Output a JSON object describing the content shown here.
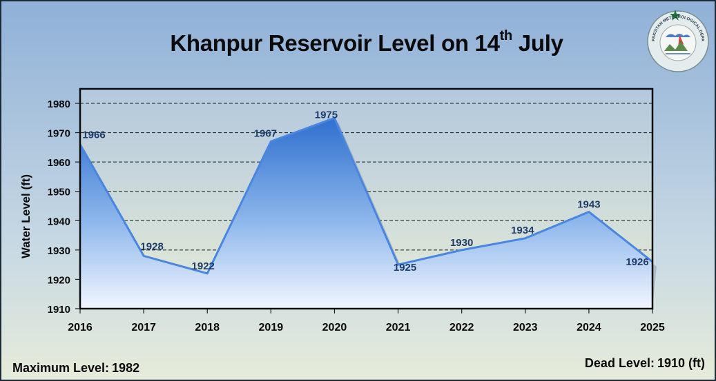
{
  "title": {
    "main": "Khanpur Reservoir Level on 14",
    "superscript": "th",
    "tail": " July"
  },
  "footer": {
    "max_label": "Maximum Level:",
    "max_value": "1982",
    "dead_label": "Dead Level:",
    "dead_value": "1910 (ft)"
  },
  "logo": {
    "icon": "pakistan-meteorological-department-seal-icon",
    "text": "PAKISTAN METEOROLOGICAL DEPARTMENT"
  },
  "colors": {
    "area_top": "#2e6fcf",
    "area_bottom": "#f2f6ff",
    "line": "#4a86e0",
    "data_label": "#1f3c6a",
    "plot_bg_top": "#b3c8de",
    "plot_bg_bottom": "#e6ecd6"
  },
  "chart_data": {
    "type": "area",
    "title": "Khanpur Reservoir Level on 14th July",
    "xlabel": "",
    "ylabel": "Water Level (ft)",
    "x": [
      "2016",
      "2017",
      "2018",
      "2019",
      "2020",
      "2021",
      "2022",
      "2023",
      "2024",
      "2025"
    ],
    "series": [
      {
        "name": "",
        "values": [
          1966,
          1928,
          1922,
          1967,
          1975,
          1925,
          1930,
          1934,
          1943,
          1926
        ]
      }
    ],
    "ylim": [
      1910,
      1980
    ],
    "yticks": [
      "1910",
      "1920",
      "1930",
      "1940",
      "1950",
      "1960",
      "1970",
      "1980"
    ],
    "grid": true,
    "legend": "none"
  }
}
